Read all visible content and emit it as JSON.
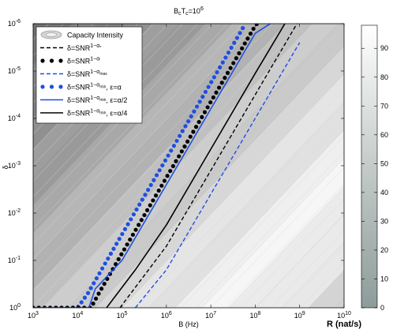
{
  "chart_data": {
    "type": "line",
    "title": "B",
    "title_sub1": "c",
    "title_mid": "T",
    "title_sub2": "c",
    "title_eq": "=10",
    "title_exp": "6",
    "xlabel": "B (Hz)",
    "ylabel": "δ",
    "colorbar_label": "R (nat/s)",
    "x_scale": "log",
    "y_scale": "log",
    "y_reversed": true,
    "xlim": [
      1000,
      10000000000
    ],
    "ylim": [
      1,
      1e-06
    ],
    "x_ticks": [
      {
        "base": "10",
        "exp": "3",
        "v": 3
      },
      {
        "base": "10",
        "exp": "4",
        "v": 4
      },
      {
        "base": "10",
        "exp": "5",
        "v": 5
      },
      {
        "base": "10",
        "exp": "6",
        "v": 6
      },
      {
        "base": "10",
        "exp": "7",
        "v": 7
      },
      {
        "base": "10",
        "exp": "8",
        "v": 8
      },
      {
        "base": "10",
        "exp": "9",
        "v": 9
      },
      {
        "base": "10",
        "exp": "10",
        "v": 10
      }
    ],
    "y_ticks": [
      {
        "base": "10",
        "exp": "-6",
        "v": -6
      },
      {
        "base": "10",
        "exp": "-5",
        "v": -5
      },
      {
        "base": "10",
        "exp": "-4",
        "v": -4
      },
      {
        "base": "10",
        "exp": "-3",
        "v": -3
      },
      {
        "base": "10",
        "exp": "-2",
        "v": -2
      },
      {
        "base": "10",
        "exp": "-1",
        "v": -1
      },
      {
        "base": "10",
        "exp": "0",
        "v": 0
      }
    ],
    "colorbar": {
      "min": 0,
      "max": 98,
      "ticks": [
        "0",
        "10",
        "20",
        "30",
        "40",
        "50",
        "60",
        "70",
        "80",
        "90"
      ]
    },
    "background": "Capacity Intensity contour bands (grayscale)",
    "legend": {
      "placement": "top-left",
      "items": [
        {
          "key": "intensity",
          "text": "Capacity Intensity",
          "style": "contour",
          "color": "#9a9a9a"
        },
        {
          "key": "s1",
          "pre": "δ=SNR",
          "sup": "1−α",
          "supsub": "*",
          "post": "",
          "style": "dashed",
          "color": "#000000"
        },
        {
          "key": "s2",
          "pre": "δ=SNR",
          "sup": "1−α",
          "supsub": "′",
          "post": "",
          "style": "dotted-marker",
          "color": "#000000"
        },
        {
          "key": "s3",
          "pre": "δ=SNR",
          "sup": "1−α",
          "supsub": "max",
          "post": "",
          "style": "dashed",
          "color": "#1f4fe0"
        },
        {
          "key": "s4",
          "pre": "δ=SNR",
          "sup": "1−α",
          "supsub": "min",
          "post": ", ε=α",
          "style": "dotted-marker",
          "color": "#1f4fe0"
        },
        {
          "key": "s5",
          "pre": "δ=SNR",
          "sup": "1−α",
          "supsub": "min",
          "post": ", ε=α/2",
          "style": "solid",
          "color": "#1f4fe0"
        },
        {
          "key": "s6",
          "pre": "δ=SNR",
          "sup": "1−α",
          "supsub": "min",
          "post": ", ε=α/4",
          "style": "solid",
          "color": "#000000"
        }
      ]
    },
    "series": [
      {
        "key": "s4",
        "style": "dotted-marker",
        "color": "#1f4fe0",
        "points": [
          [
            1000,
            1
          ],
          [
            10000,
            1
          ],
          [
            17000,
            0.5
          ],
          [
            100000,
            0.0282
          ],
          [
            1000000,
            0.000708
          ],
          [
            10000000,
            1.78e-05
          ],
          [
            60000000,
            1e-06
          ]
        ]
      },
      {
        "key": "s2",
        "style": "dotted-marker",
        "color": "#000000",
        "points": [
          [
            1000,
            1
          ],
          [
            20000,
            1
          ],
          [
            30000,
            0.5
          ],
          [
            100000,
            0.0708
          ],
          [
            1000000,
            0.00178
          ],
          [
            10000000,
            4.47e-05
          ],
          [
            100000000,
            1.1e-06
          ],
          [
            110000000,
            1e-06
          ]
        ]
      },
      {
        "key": "s5",
        "style": "solid",
        "color": "#1f4fe0",
        "points": [
          [
            1000,
            1
          ],
          [
            18000,
            1
          ],
          [
            25000,
            0.4
          ],
          [
            100000,
            0.1
          ],
          [
            1000000,
            0.00251
          ],
          [
            10000000,
            6.31e-05
          ],
          [
            100000000,
            1.6e-06
          ],
          [
            1000000000,
            4e-07
          ]
        ]
      },
      {
        "key": "s6",
        "style": "solid",
        "color": "#000000",
        "points": [
          [
            45000,
            1
          ],
          [
            200000,
            0.158
          ],
          [
            1000000,
            0.0178
          ],
          [
            10000000,
            0.000447
          ],
          [
            100000000,
            1.12e-05
          ],
          [
            1000000000,
            3e-07
          ]
        ]
      },
      {
        "key": "s1",
        "style": "dashed",
        "color": "#000000",
        "points": [
          [
            90000,
            1
          ],
          [
            1000000,
            0.05
          ],
          [
            10000000,
            0.00126
          ],
          [
            100000000,
            3.16e-05
          ],
          [
            1000000000,
            8e-07
          ]
        ]
      },
      {
        "key": "s3",
        "style": "dashed",
        "color": "#1f4fe0",
        "points": [
          [
            200000,
            1
          ],
          [
            1000000,
            0.158
          ],
          [
            10000000,
            0.00398
          ],
          [
            100000000,
            0.0001
          ],
          [
            1000000000,
            2.5e-06
          ]
        ]
      }
    ]
  }
}
